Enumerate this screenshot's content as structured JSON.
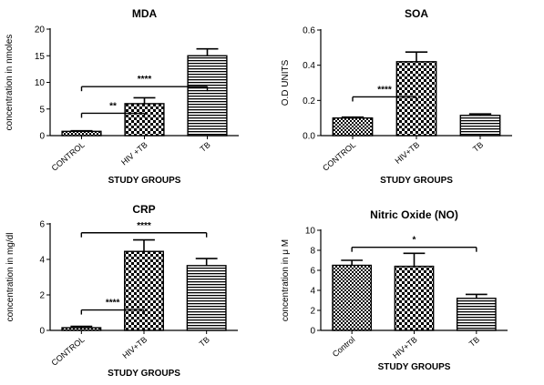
{
  "chart_data": [
    {
      "type": "bar",
      "title": "MDA",
      "xlabel": "STUDY GROUPS",
      "ylabel": "concentration in nmoles",
      "ylim": [
        0,
        20
      ],
      "yticks": [
        "0",
        "5",
        "10",
        "15",
        "20"
      ],
      "categories": [
        "CONTROL",
        "HIV +TB",
        "TB"
      ],
      "values": [
        0.8,
        6.0,
        15.0
      ],
      "errors": [
        0.1,
        1.1,
        1.3
      ],
      "patterns": [
        "diamond",
        "checker",
        "hlines"
      ],
      "annotations": [
        {
          "label": "****",
          "from": 0,
          "to": 2,
          "level": 9.2
        },
        {
          "label": "**",
          "from": 0,
          "to": 1,
          "level": 4.2
        }
      ]
    },
    {
      "type": "bar",
      "title": "SOA",
      "xlabel": "STUDY GROUPS",
      "ylabel": "O.D UNITS",
      "ylim": [
        0,
        0.6
      ],
      "yticks": [
        "0.0",
        "0.2",
        "0.4",
        "0.6"
      ],
      "categories": [
        "CONTROL",
        "HIV+TB",
        "TB"
      ],
      "values": [
        0.1,
        0.42,
        0.115
      ],
      "errors": [
        0.005,
        0.055,
        0.008
      ],
      "patterns": [
        "diamond",
        "checker",
        "hlines"
      ],
      "annotations": [
        {
          "label": "****",
          "from": 0,
          "to": 1,
          "level": 0.22
        }
      ]
    },
    {
      "type": "bar",
      "title": "CRP",
      "xlabel": "STUDY GROUPS",
      "ylabel": "concentration in mg/dl",
      "ylim": [
        0,
        6
      ],
      "yticks": [
        "0",
        "2",
        "4",
        "6"
      ],
      "categories": [
        "CONTROL",
        "HIV+TB",
        "TB"
      ],
      "values": [
        0.15,
        4.45,
        3.65
      ],
      "errors": [
        0.08,
        0.65,
        0.4
      ],
      "patterns": [
        "diamond",
        "checker",
        "hlines"
      ],
      "annotations": [
        {
          "label": "****",
          "from": 0,
          "to": 2,
          "level": 5.5
        },
        {
          "label": "****",
          "from": 0,
          "to": 1,
          "level": 1.15
        }
      ]
    },
    {
      "type": "bar",
      "title": "Nitric Oxide (NO)",
      "xlabel": "STUDY GROUPS",
      "ylabel": "concentration in μ M",
      "ylim": [
        0,
        10
      ],
      "yticks": [
        "0",
        "2",
        "4",
        "6",
        "8",
        "10"
      ],
      "categories": [
        "Control",
        "HIV+TB",
        "TB"
      ],
      "values": [
        6.5,
        6.4,
        3.2
      ],
      "errors": [
        0.5,
        1.3,
        0.4
      ],
      "patterns": [
        "diamond",
        "checker",
        "hlines"
      ],
      "annotations": [
        {
          "label": "*",
          "from": 0,
          "to": 2,
          "level": 8.3
        }
      ]
    }
  ]
}
